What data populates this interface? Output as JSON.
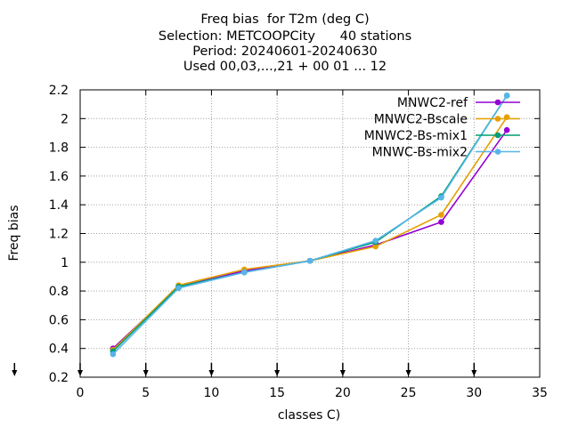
{
  "title_lines": [
    "Freq bias  for T2m (deg C)",
    "Selection: METCOOPCity      40 stations",
    "Period: 20240601-20240630",
    "Used 00,03,...,21 + 00 01 ... 12"
  ],
  "chart_data": {
    "type": "line",
    "title": "Freq bias  for T2m (deg C)",
    "xlabel": "classes C)",
    "ylabel": "Freq bias",
    "xlim": [
      0,
      35
    ],
    "ylim": [
      0.2,
      2.2
    ],
    "xticks": [
      0,
      5,
      10,
      15,
      20,
      25,
      30,
      35
    ],
    "yticks": [
      0.2,
      0.4,
      0.6,
      0.8,
      1,
      1.2,
      1.4,
      1.6,
      1.8,
      2,
      2.2
    ],
    "grid": true,
    "legend_position": "top-right",
    "arrow_markers_x": [
      -5,
      0,
      5,
      10,
      15,
      20,
      25,
      30
    ],
    "x": [
      2.5,
      7.5,
      12.5,
      17.5,
      22.5,
      27.5,
      32.5
    ],
    "series": [
      {
        "name": "MNWC2-ref",
        "color": "#9400d3",
        "marker": "circle",
        "values": [
          0.4,
          0.83,
          0.94,
          1.01,
          1.12,
          1.28,
          1.92
        ]
      },
      {
        "name": "MNWC2-Bscale",
        "color": "#e69f00",
        "marker": "circle",
        "values": [
          0.39,
          0.84,
          0.95,
          1.01,
          1.11,
          1.33,
          2.01
        ]
      },
      {
        "name": "MNWC2-Bs-mix1",
        "color": "#009e73",
        "marker": "circle",
        "values": [
          0.38,
          0.83,
          0.93,
          1.01,
          1.14,
          1.46,
          2.16
        ]
      },
      {
        "name": "MNWC-Bs-mix2",
        "color": "#56b4e9",
        "marker": "circle",
        "values": [
          0.36,
          0.82,
          0.93,
          1.01,
          1.15,
          1.45,
          2.16
        ]
      }
    ]
  }
}
